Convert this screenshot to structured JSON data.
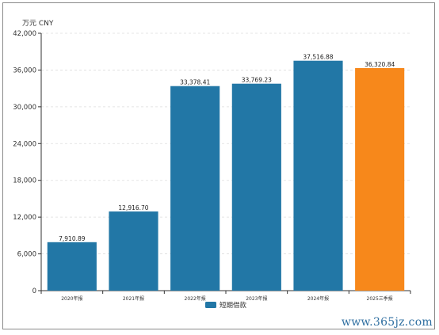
{
  "chart_data": {
    "type": "bar",
    "unit_label": "万元  CNY",
    "categories": [
      "2020年报",
      "2021年报",
      "2022年报",
      "2023年报",
      "2024年报",
      "2025三季报"
    ],
    "series": [
      {
        "name": "短期借款",
        "values": [
          7910.89,
          12916.7,
          33378.41,
          33769.23,
          37516.88,
          36320.84
        ],
        "value_labels": [
          "7,910.89",
          "12,916.70",
          "33,378.41",
          "33,769.23",
          "37,516.88",
          "36,320.84"
        ]
      }
    ],
    "ylim": [
      0,
      42000
    ],
    "yticks": [
      0,
      6000,
      12000,
      18000,
      24000,
      30000,
      36000,
      42000
    ],
    "ytick_labels": [
      "0",
      "6,000",
      "12,000",
      "18,000",
      "24,000",
      "30,000",
      "36,000",
      "42,000"
    ],
    "bar_colors": [
      "#2277a6",
      "#2277a6",
      "#2277a6",
      "#2277a6",
      "#2277a6",
      "#f7881b"
    ],
    "grid": true,
    "legend_position": "bottom-center"
  },
  "watermark": "www.365jz.com"
}
